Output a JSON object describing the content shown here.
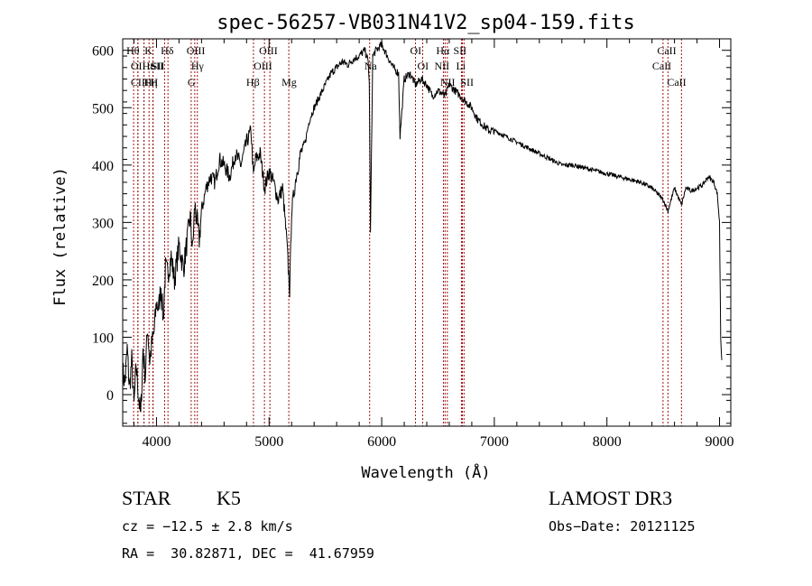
{
  "chart_data": {
    "type": "line",
    "title": "spec-56257-VB031N41V2_sp04-159.fits",
    "xlabel": "Wavelength (Å)",
    "ylabel": "Flux (relative)",
    "xlim": [
      3700,
      9100
    ],
    "ylim": [
      -55,
      620
    ],
    "xticks": [
      4000,
      5000,
      6000,
      7000,
      8000,
      9000
    ],
    "yticks": [
      0,
      100,
      200,
      300,
      400,
      500,
      600
    ],
    "grid": false,
    "line_color": "#000000",
    "marker_color": "#a01010",
    "series": [
      {
        "name": "flux",
        "x": [
          3700,
          3720,
          3740,
          3760,
          3780,
          3800,
          3820,
          3840,
          3860,
          3880,
          3900,
          3920,
          3940,
          3960,
          3980,
          4000,
          4020,
          4040,
          4060,
          4080,
          4100,
          4130,
          4160,
          4200,
          4240,
          4280,
          4300,
          4320,
          4340,
          4360,
          4380,
          4400,
          4440,
          4480,
          4520,
          4560,
          4600,
          4650,
          4700,
          4750,
          4800,
          4840,
          4861,
          4880,
          4920,
          4960,
          5000,
          5040,
          5080,
          5120,
          5160,
          5170,
          5183,
          5200,
          5240,
          5280,
          5320,
          5360,
          5400,
          5450,
          5500,
          5550,
          5600,
          5650,
          5700,
          5750,
          5800,
          5850,
          5880,
          5890,
          5900,
          5920,
          5950,
          6000,
          6050,
          6100,
          6150,
          6163,
          6200,
          6250,
          6300,
          6350,
          6400,
          6450,
          6500,
          6563,
          6600,
          6650,
          6700,
          6750,
          6800,
          6850,
          6900,
          6950,
          7000,
          7100,
          7200,
          7300,
          7400,
          7500,
          7600,
          7700,
          7800,
          7900,
          8000,
          8100,
          8200,
          8300,
          8400,
          8450,
          8498,
          8542,
          8600,
          8662,
          8700,
          8750,
          8800,
          8850,
          8900,
          8950,
          8980,
          9000,
          9010,
          9020
        ],
        "y": [
          40,
          20,
          80,
          10,
          60,
          -20,
          50,
          0,
          -40,
          80,
          30,
          120,
          60,
          90,
          110,
          160,
          150,
          190,
          130,
          220,
          210,
          240,
          200,
          260,
          220,
          280,
          310,
          250,
          330,
          300,
          270,
          320,
          360,
          380,
          370,
          410,
          400,
          380,
          420,
          400,
          440,
          460,
          380,
          410,
          420,
          360,
          390,
          370,
          340,
          360,
          260,
          220,
          180,
          320,
          380,
          420,
          440,
          480,
          500,
          520,
          540,
          560,
          570,
          580,
          575,
          585,
          590,
          600,
          580,
          540,
          280,
          590,
          600,
          610,
          590,
          570,
          560,
          450,
          550,
          560,
          540,
          550,
          540,
          520,
          530,
          520,
          540,
          530,
          520,
          510,
          500,
          480,
          470,
          460,
          460,
          450,
          440,
          430,
          420,
          410,
          400,
          400,
          395,
          390,
          385,
          380,
          375,
          370,
          360,
          350,
          340,
          320,
          360,
          330,
          360,
          355,
          360,
          365,
          380,
          370,
          350,
          300,
          100,
          60
        ]
      }
    ],
    "line_markers": [
      {
        "wl": 3797,
        "label": "Hθ",
        "row": 0,
        "dx": -8
      },
      {
        "wl": 3835,
        "label": "OII",
        "row": 1,
        "dx": -8
      },
      {
        "wl": 3835,
        "label": "CIII",
        "row": 2,
        "dx": -8
      },
      {
        "wl": 3889,
        "label": "Hε",
        "row": 1,
        "dx": -2
      },
      {
        "wl": 3889,
        "label": "Hη",
        "row": 2,
        "dx": 0
      },
      {
        "wl": 3934,
        "label": "K",
        "row": 0,
        "dx": -5
      },
      {
        "wl": 3968,
        "label": "H",
        "row": 2,
        "dx": -3
      },
      {
        "wl": 3970,
        "label": "SII",
        "row": 1,
        "dx": -2
      },
      {
        "wl": 4102,
        "label": "Hδ",
        "row": 0,
        "dx": -8
      },
      {
        "wl": 4072,
        "label": "SII",
        "row": 1,
        "dx": -16
      },
      {
        "wl": 4308,
        "label": "G",
        "row": 2,
        "dx": -4
      },
      {
        "wl": 4340,
        "label": "Hγ",
        "row": 1,
        "dx": -4
      },
      {
        "wl": 4363,
        "label": "OIII",
        "row": 0,
        "dx": -12
      },
      {
        "wl": 4861,
        "label": "Hβ",
        "row": 2,
        "dx": -8
      },
      {
        "wl": 4959,
        "label": "OIII",
        "row": 1,
        "dx": -12
      },
      {
        "wl": 5007,
        "label": "OIII",
        "row": 0,
        "dx": -12
      },
      {
        "wl": 5175,
        "label": "Mg",
        "row": 2,
        "dx": -8
      },
      {
        "wl": 5893,
        "label": "Na",
        "row": 1,
        "dx": -6
      },
      {
        "wl": 6300,
        "label": "OI",
        "row": 0,
        "dx": -6
      },
      {
        "wl": 6364,
        "label": "OI",
        "row": 1,
        "dx": -6
      },
      {
        "wl": 6548,
        "label": "NII",
        "row": 1,
        "dx": -10
      },
      {
        "wl": 6563,
        "label": "Hα",
        "row": 0,
        "dx": -10
      },
      {
        "wl": 6583,
        "label": "NII",
        "row": 2,
        "dx": -8
      },
      {
        "wl": 6708,
        "label": "Li",
        "row": 1,
        "dx": -6
      },
      {
        "wl": 6716,
        "label": "SII",
        "row": 0,
        "dx": -10
      },
      {
        "wl": 6731,
        "label": "SII",
        "row": 2,
        "dx": -4
      },
      {
        "wl": 8498,
        "label": "CaII",
        "row": 1,
        "dx": -12
      },
      {
        "wl": 8542,
        "label": "CaII",
        "row": 0,
        "dx": -12
      },
      {
        "wl": 8662,
        "label": "CaII",
        "row": 2,
        "dx": -16
      }
    ]
  },
  "info": {
    "object_class": "STAR",
    "subclass": "K5",
    "survey": "LAMOST DR3",
    "redshift_text": "cz = −12.5 ± 2.8 km/s",
    "obs_date_text": "Obs−Date: 20121125",
    "coords_text": "RA =  30.82871, DEC =  41.67959"
  }
}
